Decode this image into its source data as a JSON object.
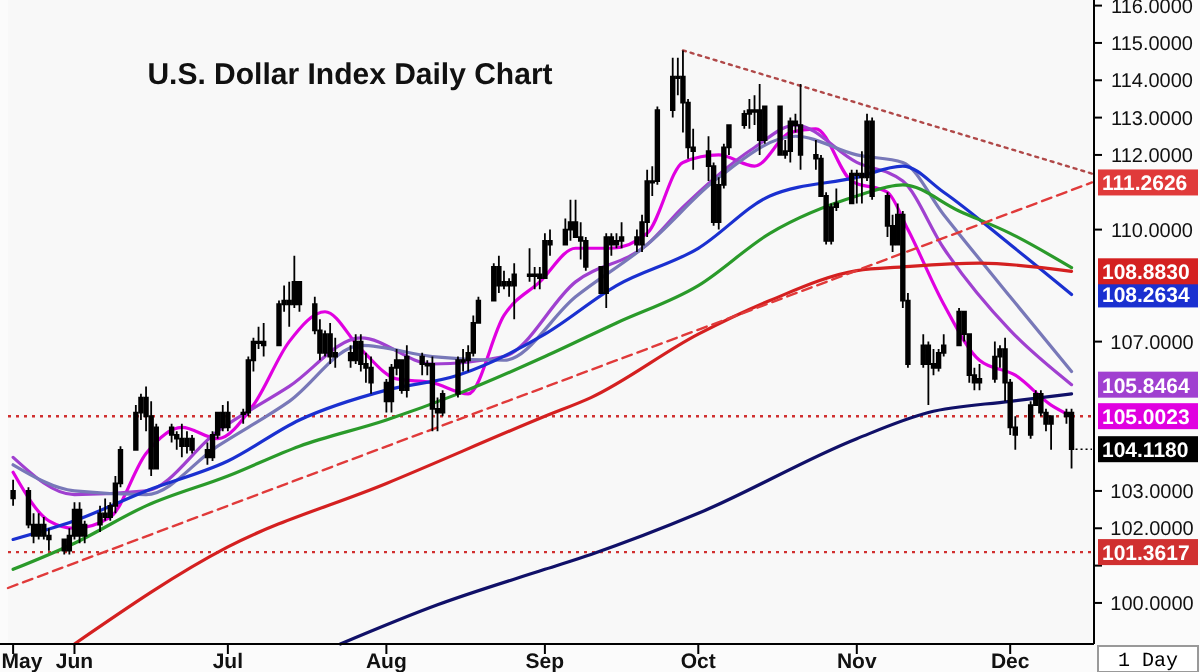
{
  "chart_data": {
    "type": "candlestick",
    "title": "U.S. Dollar Index Daily Chart",
    "xlim": [
      "--05-19",
      "--12-17"
    ],
    "xticks": [
      {
        "value": "--05-20",
        "label": "May"
      },
      {
        "value": "--06-01",
        "label": "Jun"
      },
      {
        "value": "--07-01",
        "label": "Jul"
      },
      {
        "value": "--08-01",
        "label": "Aug"
      },
      {
        "value": "--09-01",
        "label": "Sep"
      },
      {
        "value": "--10-01",
        "label": "Oct"
      },
      {
        "value": "--11-01",
        "label": "Nov"
      },
      {
        "value": "--12-01",
        "label": "Dec"
      }
    ],
    "ylim": [
      98.9,
      116.15
    ],
    "yticks": [
      {
        "value": 100,
        "label": "100.0000"
      },
      {
        "value": 101,
        "label": null
      },
      {
        "value": 102,
        "label": "102.0000"
      },
      {
        "value": 103,
        "label": "103.0000"
      },
      {
        "value": 107,
        "label": "107.0000"
      },
      {
        "value": 110,
        "label": "110.0000"
      },
      {
        "value": 112,
        "label": "112.0000"
      },
      {
        "value": 113,
        "label": "113.0000"
      },
      {
        "value": 114,
        "label": "114.0000"
      },
      {
        "value": 115,
        "label": "115.0000"
      },
      {
        "value": 116,
        "label": "116.0000"
      }
    ],
    "x": [
      "--05-20",
      "--05-23",
      "--05-24",
      "--05-25",
      "--05-26",
      "--05-27",
      "--05-30",
      "--05-31",
      "--06-01",
      "--06-02",
      "--06-03",
      "--06-06",
      "--06-07",
      "--06-08",
      "--06-09",
      "--06-10",
      "--06-13",
      "--06-14",
      "--06-15",
      "--06-16",
      "--06-17",
      "--06-20",
      "--06-21",
      "--06-22",
      "--06-23",
      "--06-24",
      "--06-27",
      "--06-28",
      "--06-29",
      "--06-30",
      "--07-01",
      "--07-04",
      "--07-05",
      "--07-06",
      "--07-07",
      "--07-08",
      "--07-11",
      "--07-12",
      "--07-13",
      "--07-14",
      "--07-15",
      "--07-18",
      "--07-19",
      "--07-20",
      "--07-21",
      "--07-22",
      "--07-25",
      "--07-26",
      "--07-27",
      "--07-28",
      "--07-29",
      "--08-01",
      "--08-02",
      "--08-03",
      "--08-04",
      "--08-05",
      "--08-08",
      "--08-09",
      "--08-10",
      "--08-11",
      "--08-12",
      "--08-15",
      "--08-16",
      "--08-17",
      "--08-18",
      "--08-19",
      "--08-22",
      "--08-23",
      "--08-24",
      "--08-25",
      "--08-26",
      "--08-29",
      "--08-30",
      "--08-31",
      "--09-01",
      "--09-02",
      "--09-05",
      "--09-06",
      "--09-07",
      "--09-08",
      "--09-09",
      "--09-12",
      "--09-13",
      "--09-14",
      "--09-15",
      "--09-16",
      "--09-19",
      "--09-20",
      "--09-21",
      "--09-22",
      "--09-23",
      "--09-26",
      "--09-27",
      "--09-28",
      "--09-29",
      "--09-30",
      "--10-03",
      "--10-04",
      "--10-05",
      "--10-06",
      "--10-07",
      "--10-10",
      "--10-11",
      "--10-12",
      "--10-13",
      "--10-14",
      "--10-17",
      "--10-18",
      "--10-19",
      "--10-20",
      "--10-21",
      "--10-24",
      "--10-25",
      "--10-26",
      "--10-27",
      "--10-28",
      "--10-31",
      "--11-01",
      "--11-02",
      "--11-03",
      "--11-04",
      "--11-07",
      "--11-08",
      "--11-09",
      "--11-10",
      "--11-11",
      "--11-14",
      "--11-15",
      "--11-16",
      "--11-17",
      "--11-18",
      "--11-21",
      "--11-22",
      "--11-23",
      "--11-24",
      "--11-25",
      "--11-28",
      "--11-29",
      "--11-30",
      "--12-01",
      "--12-02",
      "--12-05",
      "--12-06",
      "--12-07",
      "--12-08",
      "--12-09",
      "--12-12",
      "--12-13"
    ],
    "ohlc": [
      [
        102.8,
        103.3,
        102.6,
        103.0
      ],
      [
        103.0,
        103.1,
        102.0,
        102.1
      ],
      [
        102.1,
        102.4,
        101.6,
        101.8
      ],
      [
        101.8,
        102.4,
        101.7,
        102.1
      ],
      [
        102.1,
        102.3,
        101.7,
        101.8
      ],
      [
        101.8,
        102.0,
        101.4,
        101.7
      ],
      [
        101.7,
        101.7,
        101.3,
        101.4
      ],
      [
        101.4,
        102.0,
        101.3,
        101.8
      ],
      [
        101.8,
        102.7,
        101.7,
        102.5
      ],
      [
        102.5,
        102.7,
        101.6,
        101.8
      ],
      [
        101.8,
        102.2,
        101.6,
        102.1
      ],
      [
        102.1,
        102.6,
        101.9,
        102.4
      ],
      [
        102.4,
        102.8,
        102.2,
        102.3
      ],
      [
        102.3,
        102.7,
        102.2,
        102.6
      ],
      [
        102.6,
        103.4,
        102.4,
        103.2
      ],
      [
        103.2,
        104.2,
        103.1,
        104.1
      ],
      [
        104.1,
        105.3,
        104.1,
        105.1
      ],
      [
        105.1,
        105.6,
        104.9,
        105.5
      ],
      [
        105.5,
        105.8,
        104.6,
        105.0
      ],
      [
        105.0,
        105.4,
        103.4,
        103.6
      ],
      [
        103.6,
        104.8,
        103.6,
        104.7
      ],
      [
        104.7,
        104.8,
        104.3,
        104.5
      ],
      [
        104.5,
        104.6,
        104.1,
        104.4
      ],
      [
        104.4,
        104.8,
        103.9,
        104.2
      ],
      [
        104.2,
        104.6,
        104.0,
        104.4
      ],
      [
        104.4,
        104.5,
        104.0,
        104.1
      ],
      [
        104.1,
        104.3,
        103.7,
        103.9
      ],
      [
        103.9,
        104.6,
        103.8,
        104.5
      ],
      [
        104.5,
        105.1,
        104.4,
        105.1
      ],
      [
        105.1,
        105.3,
        104.6,
        104.7
      ],
      [
        104.7,
        105.4,
        104.6,
        105.1
      ],
      [
        105.1,
        105.2,
        104.8,
        105.1
      ],
      [
        105.1,
        106.6,
        105.0,
        106.5
      ],
      [
        106.5,
        107.1,
        106.2,
        107.0
      ],
      [
        107.0,
        107.4,
        106.8,
        107.0
      ],
      [
        107.0,
        107.5,
        106.6,
        106.9
      ],
      [
        106.9,
        108.1,
        106.9,
        108.0
      ],
      [
        108.0,
        108.5,
        107.8,
        108.1
      ],
      [
        108.1,
        108.6,
        107.4,
        108.0
      ],
      [
        108.0,
        109.3,
        107.9,
        108.6
      ],
      [
        108.6,
        108.6,
        107.8,
        108.0
      ],
      [
        108.0,
        108.2,
        107.2,
        107.3
      ],
      [
        107.3,
        107.6,
        106.5,
        106.7
      ],
      [
        106.7,
        107.3,
        106.6,
        107.2
      ],
      [
        107.2,
        107.5,
        106.4,
        106.6
      ],
      [
        106.6,
        107.1,
        106.3,
        106.7
      ],
      [
        106.7,
        106.9,
        106.3,
        106.5
      ],
      [
        106.5,
        107.2,
        106.4,
        107.0
      ],
      [
        107.0,
        107.2,
        106.2,
        106.4
      ],
      [
        106.4,
        106.7,
        105.9,
        106.3
      ],
      [
        106.3,
        106.6,
        105.6,
        105.9
      ],
      [
        105.9,
        106.0,
        105.1,
        105.4
      ],
      [
        105.4,
        106.4,
        105.1,
        106.3
      ],
      [
        106.3,
        106.8,
        106.1,
        106.5
      ],
      [
        106.5,
        106.5,
        105.6,
        105.7
      ],
      [
        105.7,
        106.9,
        105.5,
        106.6
      ],
      [
        106.6,
        106.7,
        106.1,
        106.4
      ],
      [
        106.4,
        106.5,
        106.1,
        106.4
      ],
      [
        106.4,
        106.6,
        104.6,
        105.2
      ],
      [
        105.2,
        105.5,
        104.6,
        105.1
      ],
      [
        105.1,
        105.7,
        105.0,
        105.6
      ],
      [
        105.6,
        106.6,
        105.5,
        106.5
      ],
      [
        106.5,
        106.8,
        106.2,
        106.5
      ],
      [
        106.5,
        106.9,
        106.2,
        106.7
      ],
      [
        106.7,
        107.7,
        106.6,
        107.5
      ],
      [
        107.5,
        108.2,
        107.5,
        108.1
      ],
      [
        108.1,
        109.1,
        108.1,
        109.0
      ],
      [
        109.0,
        109.3,
        108.3,
        108.5
      ],
      [
        108.5,
        108.9,
        108.4,
        108.6
      ],
      [
        108.6,
        108.7,
        108.2,
        108.5
      ],
      [
        108.5,
        109.1,
        107.6,
        108.8
      ],
      [
        108.8,
        109.5,
        108.6,
        108.8
      ],
      [
        108.8,
        109.0,
        108.4,
        108.8
      ],
      [
        108.8,
        109.0,
        108.4,
        108.7
      ],
      [
        108.7,
        109.9,
        108.7,
        109.7
      ],
      [
        109.7,
        110.0,
        109.3,
        109.6
      ],
      [
        109.6,
        110.3,
        109.6,
        110.0
      ],
      [
        110.0,
        110.8,
        109.7,
        110.2
      ],
      [
        110.2,
        110.8,
        109.8,
        109.8
      ],
      [
        109.8,
        110.2,
        109.2,
        109.7
      ],
      [
        109.7,
        109.8,
        108.9,
        109.0
      ],
      [
        109.0,
        109.0,
        108.3,
        108.3
      ],
      [
        108.3,
        109.9,
        107.9,
        109.8
      ],
      [
        109.8,
        109.9,
        109.3,
        109.6
      ],
      [
        109.6,
        109.9,
        109.5,
        109.7
      ],
      [
        109.7,
        110.2,
        109.5,
        109.8
      ],
      [
        109.8,
        110.0,
        109.4,
        109.6
      ],
      [
        109.6,
        110.4,
        109.4,
        110.2
      ],
      [
        110.2,
        111.6,
        109.8,
        111.3
      ],
      [
        111.3,
        111.7,
        110.9,
        111.3
      ],
      [
        111.3,
        113.3,
        111.2,
        113.2
      ],
      [
        113.2,
        114.6,
        113.0,
        114.1
      ],
      [
        114.1,
        114.6,
        113.6,
        114.1
      ],
      [
        114.1,
        114.8,
        112.6,
        113.4
      ],
      [
        113.4,
        113.5,
        111.9,
        112.2
      ],
      [
        112.2,
        112.7,
        111.6,
        112.1
      ],
      [
        112.1,
        112.5,
        111.3,
        111.7
      ],
      [
        111.7,
        111.8,
        110.1,
        110.2
      ],
      [
        110.2,
        111.4,
        110.0,
        111.2
      ],
      [
        111.2,
        112.3,
        111.1,
        112.2
      ],
      [
        112.2,
        112.8,
        112.0,
        112.8
      ],
      [
        112.8,
        113.2,
        112.7,
        113.1
      ],
      [
        113.1,
        113.5,
        112.7,
        113.2
      ],
      [
        113.2,
        113.6,
        112.8,
        113.2
      ],
      [
        113.2,
        113.9,
        112.0,
        112.4
      ],
      [
        112.4,
        113.3,
        112.3,
        113.3
      ],
      [
        113.3,
        113.3,
        112.0,
        112.0
      ],
      [
        112.0,
        112.4,
        111.9,
        112.1
      ],
      [
        112.1,
        113.0,
        111.8,
        112.9
      ],
      [
        112.9,
        113.1,
        112.6,
        112.8
      ],
      [
        112.8,
        113.9,
        111.6,
        112.0
      ],
      [
        112.0,
        112.4,
        111.6,
        111.9
      ],
      [
        111.9,
        112.0,
        110.9,
        110.9
      ],
      [
        110.9,
        111.0,
        109.6,
        109.7
      ],
      [
        109.7,
        110.7,
        109.6,
        110.6
      ],
      [
        110.6,
        111.1,
        110.5,
        110.7
      ],
      [
        110.7,
        111.6,
        110.7,
        111.5
      ],
      [
        111.5,
        111.6,
        110.7,
        111.5
      ],
      [
        111.5,
        112.1,
        110.7,
        111.4
      ],
      [
        111.4,
        113.1,
        111.3,
        112.9
      ],
      [
        112.9,
        113.0,
        110.8,
        110.9
      ],
      [
        110.9,
        111.0,
        109.8,
        110.1
      ],
      [
        110.1,
        110.4,
        109.4,
        109.6
      ],
      [
        109.6,
        110.7,
        109.6,
        110.4
      ],
      [
        110.4,
        110.5,
        107.9,
        108.1
      ],
      [
        108.1,
        108.3,
        106.3,
        106.4
      ],
      [
        106.4,
        107.2,
        106.3,
        106.9
      ],
      [
        106.9,
        107.0,
        105.3,
        106.4
      ],
      [
        106.4,
        106.8,
        106.1,
        106.3
      ],
      [
        106.3,
        106.8,
        106.2,
        106.7
      ],
      [
        106.7,
        107.2,
        106.6,
        106.9
      ],
      [
        106.9,
        107.9,
        106.9,
        107.8
      ],
      [
        107.8,
        107.8,
        107.0,
        107.2
      ],
      [
        107.2,
        107.2,
        105.9,
        106.1
      ],
      [
        106.1,
        106.3,
        105.7,
        105.9
      ],
      [
        105.9,
        106.4,
        105.7,
        106.0
      ],
      [
        106.0,
        107.0,
        105.9,
        106.6
      ],
      [
        106.6,
        106.9,
        106.3,
        106.8
      ],
      [
        106.8,
        107.1,
        105.4,
        105.9
      ],
      [
        105.9,
        106.0,
        104.5,
        104.7
      ],
      [
        104.7,
        105.0,
        104.1,
        104.5
      ],
      [
        104.5,
        105.4,
        104.4,
        105.3
      ],
      [
        105.3,
        105.7,
        105.3,
        105.6
      ],
      [
        105.6,
        105.7,
        105.0,
        105.1
      ],
      [
        105.1,
        105.2,
        104.6,
        104.8
      ],
      [
        104.8,
        105.0,
        104.1,
        105.0
      ],
      [
        105.0,
        105.2,
        104.8,
        105.1
      ],
      [
        105.1,
        105.2,
        103.6,
        104.118
      ]
    ],
    "series": [
      {
        "type": "line",
        "color": "#e000e0",
        "x": [
          "--05-20",
          "--05-27",
          "--06-01",
          "--06-08",
          "--06-15",
          "--06-22",
          "--06-29",
          "--07-06",
          "--07-13",
          "--07-20",
          "--07-27",
          "--08-03",
          "--08-10",
          "--08-17",
          "--08-24",
          "--08-31",
          "--09-07",
          "--09-14",
          "--09-21",
          "--09-28",
          "--10-05",
          "--10-12",
          "--10-19",
          "--10-24",
          "--10-31",
          "--11-07",
          "--11-11",
          "--11-18",
          "--11-25",
          "--12-02",
          "--12-09",
          "--12-13"
        ],
        "values": [
          103.5,
          102.2,
          102.0,
          102.3,
          104.0,
          104.7,
          104.4,
          105.3,
          107.0,
          107.8,
          106.8,
          106.0,
          105.9,
          105.6,
          107.7,
          108.6,
          109.5,
          109.5,
          109.9,
          111.8,
          112.0,
          111.7,
          112.6,
          112.7,
          111.3,
          111.0,
          110.0,
          108.0,
          106.5,
          106.1,
          105.3,
          105.0023
        ],
        "value_labels": [
          null,
          null,
          null,
          null,
          null,
          null,
          null,
          null,
          null,
          null,
          null,
          null,
          null,
          null,
          null,
          null,
          null,
          null,
          null,
          null,
          null,
          null,
          null,
          null,
          null,
          null,
          null,
          null,
          null,
          null,
          null,
          "105.0023"
        ]
      },
      {
        "type": "line",
        "color": "#a040d0",
        "x": [
          "--05-20",
          "--06-01",
          "--06-15",
          "--06-29",
          "--07-13",
          "--07-27",
          "--08-10",
          "--08-24",
          "--09-07",
          "--09-21",
          "--09-28",
          "--10-12",
          "--10-20",
          "--11-01",
          "--11-10",
          "--11-18",
          "--12-01",
          "--12-13"
        ],
        "values": [
          103.9,
          102.9,
          103.0,
          104.6,
          105.8,
          107.1,
          106.4,
          106.6,
          108.6,
          109.6,
          110.6,
          112.2,
          112.8,
          111.8,
          111.3,
          109.5,
          107.3,
          105.8464
        ],
        "value_labels": [
          null,
          null,
          null,
          null,
          null,
          null,
          null,
          null,
          null,
          null,
          null,
          null,
          null,
          null,
          null,
          null,
          null,
          "105.8464"
        ]
      },
      {
        "type": "line",
        "color": "#7878b8",
        "x": [
          "--05-20",
          "--06-01",
          "--06-15",
          "--06-29",
          "--07-13",
          "--07-27",
          "--08-10",
          "--08-24",
          "--09-07",
          "--09-21",
          "--10-05",
          "--10-20",
          "--11-01",
          "--11-10",
          "--11-18",
          "--12-01",
          "--12-13"
        ],
        "values": [
          103.7,
          103.0,
          102.9,
          104.2,
          105.4,
          106.9,
          106.6,
          106.5,
          108.2,
          109.6,
          111.4,
          112.5,
          112.0,
          111.8,
          110.4,
          108.2,
          106.2
        ]
      },
      {
        "type": "line",
        "color": "#1a30d0",
        "x": [
          "--05-20",
          "--06-01",
          "--06-15",
          "--07-01",
          "--07-15",
          "--08-01",
          "--08-15",
          "--09-01",
          "--09-15",
          "--10-01",
          "--10-15",
          "--11-01",
          "--11-10",
          "--11-18",
          "--12-01",
          "--12-13"
        ],
        "values": [
          101.7,
          102.2,
          103.0,
          103.8,
          104.9,
          105.7,
          106.1,
          107.2,
          108.5,
          109.5,
          110.9,
          111.4,
          111.7,
          111.0,
          109.6,
          108.2634
        ],
        "value_labels": [
          null,
          null,
          null,
          null,
          null,
          null,
          null,
          null,
          null,
          null,
          null,
          null,
          null,
          null,
          null,
          "108.2634"
        ]
      },
      {
        "type": "line",
        "color": "#2a9a2a",
        "x": [
          "--05-20",
          "--06-01",
          "--06-15",
          "--07-01",
          "--07-15",
          "--08-01",
          "--08-15",
          "--09-01",
          "--09-15",
          "--10-01",
          "--10-15",
          "--11-01",
          "--11-10",
          "--11-21",
          "--12-01",
          "--12-13"
        ],
        "values": [
          100.9,
          101.6,
          102.6,
          103.4,
          104.2,
          104.9,
          105.6,
          106.6,
          107.5,
          108.5,
          109.9,
          110.9,
          111.2,
          110.5,
          109.9,
          108.98
        ]
      },
      {
        "type": "line",
        "color": "#d42020",
        "x": [
          "--06-01",
          "--07-01",
          "--08-01",
          "--09-01",
          "--09-10",
          "--10-01",
          "--10-15",
          "--11-01",
          "--11-10",
          "--11-25",
          "--12-13"
        ],
        "values": [
          98.9,
          101.5,
          103.2,
          105.0,
          105.5,
          107.2,
          108.1,
          108.9,
          109.0,
          109.1,
          108.883
        ],
        "value_labels": [
          null,
          null,
          null,
          null,
          null,
          null,
          null,
          null,
          null,
          null,
          "108.8830"
        ]
      },
      {
        "type": "line",
        "color": "#101068",
        "x": [
          "--07-23",
          "--08-11",
          "--09-01",
          "--09-10",
          "--10-01",
          "--11-01",
          "--11-15",
          "--12-01",
          "--12-13"
        ],
        "values": [
          98.9,
          99.95,
          100.9,
          101.3,
          102.4,
          104.4,
          105.1,
          105.4,
          105.6
        ]
      },
      {
        "type": "line",
        "color": "#e03a3a",
        "line_style": "dashed",
        "x": [
          "--05-19",
          "--12-17"
        ],
        "values": [
          100.4,
          111.2626
        ],
        "value_labels": [
          null,
          "111.2626"
        ]
      },
      {
        "type": "line",
        "color": "#b04848",
        "line_style": "dotted",
        "x": [
          "--09-28",
          "--12-17"
        ],
        "values": [
          114.8,
          111.5
        ]
      }
    ],
    "ref_lines": [
      {
        "axis": "y",
        "value": 105.0023,
        "color": "#d03030",
        "line_style": "dotted"
      },
      {
        "axis": "y",
        "value": 101.3617,
        "label": "101.3617",
        "color": "#d03030",
        "line_style": "dotted"
      }
    ],
    "annotations": [
      {
        "text": "104.1180",
        "x": "--12-13",
        "y": 104.118
      },
      "1 Day"
    ]
  }
}
